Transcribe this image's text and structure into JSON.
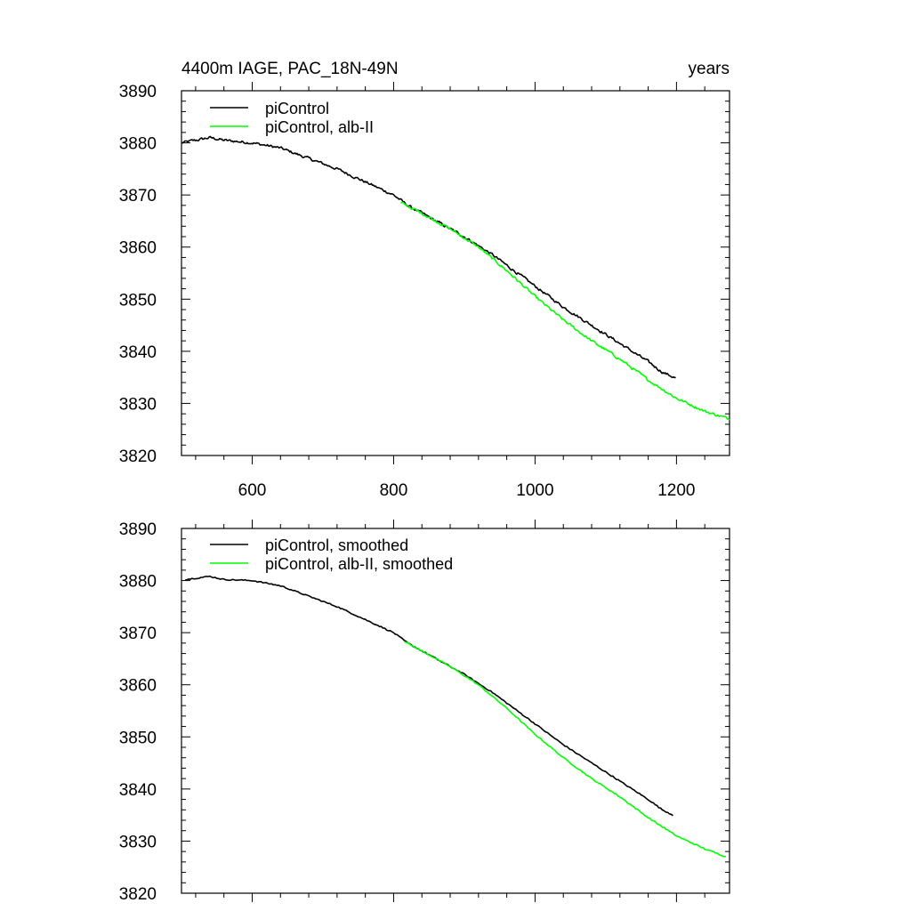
{
  "chart_data": [
    {
      "type": "line",
      "title": "4400m IAGE, PAC_18N-49N",
      "units": "years",
      "xlim": [
        500,
        1275
      ],
      "ylim": [
        3820,
        3890
      ],
      "xticks": [
        600,
        800,
        1000,
        1200
      ],
      "xtick_labels": [
        "600",
        "800",
        "1000",
        "1200"
      ],
      "yticks": [
        3820,
        3830,
        3840,
        3850,
        3860,
        3870,
        3880,
        3890
      ],
      "ytick_labels": [
        "3820",
        "3830",
        "3840",
        "3850",
        "3860",
        "3870",
        "3880",
        "3890"
      ],
      "legend": [
        "piControl",
        "piControl, alb-II"
      ],
      "legend_position": "top-left",
      "noisy": true,
      "series": [
        {
          "name": "piControl",
          "color": "#000000",
          "x": [
            500,
            540,
            560,
            600,
            640,
            680,
            720,
            760,
            800,
            820,
            860,
            900,
            940,
            960,
            1000,
            1040,
            1080,
            1120,
            1160,
            1180,
            1200
          ],
          "values": [
            3880.0,
            3881.0,
            3880.5,
            3880.0,
            3879.0,
            3877.0,
            3875.0,
            3872.5,
            3870.0,
            3868.0,
            3865.0,
            3862.0,
            3858.5,
            3856.5,
            3852.5,
            3848.5,
            3845.0,
            3841.5,
            3838.0,
            3836.0,
            3834.8
          ]
        },
        {
          "name": "piControl, alb-II",
          "color": "#00ff00",
          "x": [
            810,
            840,
            880,
            920,
            960,
            1000,
            1040,
            1080,
            1120,
            1160,
            1200,
            1240,
            1275
          ],
          "values": [
            3868.5,
            3866.5,
            3863.5,
            3860.0,
            3855.5,
            3850.5,
            3846.0,
            3842.0,
            3838.5,
            3834.5,
            3831.0,
            3828.5,
            3827.0
          ]
        }
      ]
    },
    {
      "type": "line",
      "xlim": [
        500,
        1275
      ],
      "ylim": [
        3820,
        3890
      ],
      "xticks": [
        600,
        800,
        1000,
        1200
      ],
      "yticks": [
        3820,
        3830,
        3840,
        3850,
        3860,
        3870,
        3880,
        3890
      ],
      "ytick_labels": [
        "3820",
        "3830",
        "3840",
        "3850",
        "3860",
        "3870",
        "3880",
        "3890"
      ],
      "legend": [
        "piControl, smoothed",
        "piControl, alb-II, smoothed"
      ],
      "legend_position": "top-left",
      "noisy": false,
      "series": [
        {
          "name": "piControl, smoothed",
          "color": "#000000",
          "x": [
            505,
            540,
            560,
            600,
            640,
            680,
            720,
            760,
            800,
            820,
            860,
            900,
            940,
            960,
            1000,
            1040,
            1080,
            1120,
            1160,
            1180,
            1195
          ],
          "values": [
            3880.2,
            3880.8,
            3880.2,
            3880.0,
            3879.0,
            3877.0,
            3875.0,
            3872.5,
            3870.0,
            3868.0,
            3865.0,
            3862.0,
            3858.5,
            3856.5,
            3852.5,
            3848.5,
            3845.0,
            3841.5,
            3838.0,
            3836.0,
            3835.0
          ]
        },
        {
          "name": "piControl, alb-II, smoothed",
          "color": "#00ff00",
          "x": [
            815,
            840,
            880,
            920,
            960,
            1000,
            1040,
            1080,
            1120,
            1160,
            1200,
            1240,
            1270
          ],
          "values": [
            3868.3,
            3866.5,
            3863.5,
            3860.0,
            3855.5,
            3850.5,
            3846.0,
            3842.0,
            3838.5,
            3834.5,
            3831.0,
            3828.5,
            3827.0
          ]
        }
      ]
    }
  ]
}
